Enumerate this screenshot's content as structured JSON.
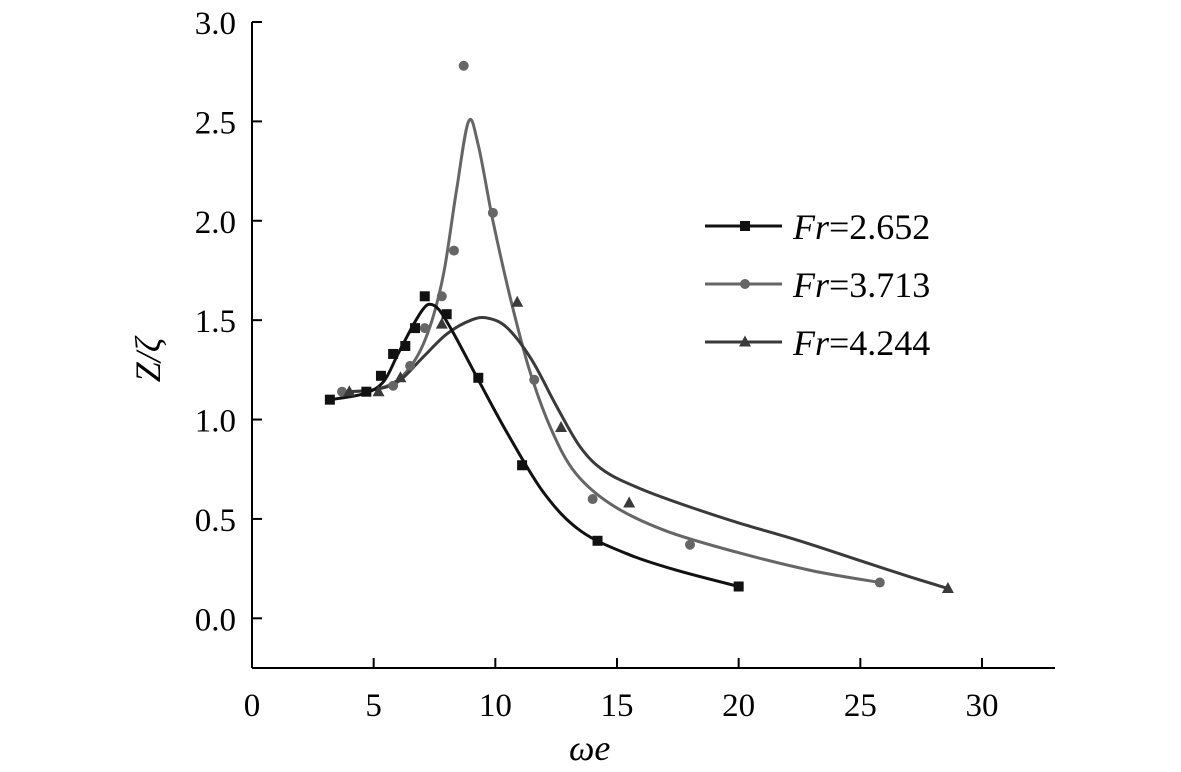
{
  "chart_data": {
    "type": "line",
    "title": "",
    "xlabel": "ωe",
    "ylabel": "Z/ζ",
    "xlim": [
      0,
      33
    ],
    "ylim": [
      -0.25,
      3.0
    ],
    "xticks": [
      "0",
      "5",
      "10",
      "15",
      "20",
      "25",
      "30"
    ],
    "yticks": [
      "0.0",
      "0.5",
      "1.0",
      "1.5",
      "2.0",
      "2.5",
      "3.0"
    ],
    "grid": false,
    "legend_position": "top-right",
    "series": [
      {
        "name": "Fr=2.652",
        "name_italic": "Fr",
        "name_rest": "=2.652",
        "marker": "square",
        "color": "#111111",
        "points": [
          [
            3.2,
            1.1
          ],
          [
            4.7,
            1.14
          ],
          [
            5.3,
            1.22
          ],
          [
            5.8,
            1.33
          ],
          [
            6.3,
            1.37
          ],
          [
            6.7,
            1.46
          ],
          [
            7.1,
            1.62
          ],
          [
            8.0,
            1.53
          ],
          [
            9.3,
            1.21
          ],
          [
            11.1,
            0.77
          ],
          [
            14.2,
            0.39
          ],
          [
            20.0,
            0.16
          ]
        ],
        "curve": [
          [
            3.2,
            1.1
          ],
          [
            4.6,
            1.13
          ],
          [
            5.4,
            1.19
          ],
          [
            6.0,
            1.33
          ],
          [
            6.6,
            1.47
          ],
          [
            7.0,
            1.55
          ],
          [
            7.3,
            1.58
          ],
          [
            7.7,
            1.55
          ],
          [
            8.3,
            1.43
          ],
          [
            9.3,
            1.2
          ],
          [
            10.5,
            0.93
          ],
          [
            12.0,
            0.63
          ],
          [
            13.5,
            0.44
          ],
          [
            15.5,
            0.32
          ],
          [
            17.5,
            0.24
          ],
          [
            20.0,
            0.16
          ]
        ]
      },
      {
        "name": "Fr=3.713",
        "name_italic": "Fr",
        "name_rest": "=3.713",
        "marker": "circle",
        "color": "#666666",
        "points": [
          [
            3.7,
            1.14
          ],
          [
            5.8,
            1.17
          ],
          [
            6.5,
            1.27
          ],
          [
            7.1,
            1.46
          ],
          [
            7.8,
            1.62
          ],
          [
            8.3,
            1.85
          ],
          [
            8.7,
            2.78
          ],
          [
            9.9,
            2.04
          ],
          [
            11.6,
            1.2
          ],
          [
            14.0,
            0.6
          ],
          [
            18.0,
            0.37
          ],
          [
            25.8,
            0.18
          ]
        ],
        "curve": [
          [
            3.7,
            1.14
          ],
          [
            5.0,
            1.15
          ],
          [
            6.0,
            1.2
          ],
          [
            6.8,
            1.32
          ],
          [
            7.4,
            1.5
          ],
          [
            7.9,
            1.75
          ],
          [
            8.4,
            2.15
          ],
          [
            8.9,
            2.5
          ],
          [
            9.3,
            2.38
          ],
          [
            9.9,
            2.0
          ],
          [
            10.6,
            1.62
          ],
          [
            11.4,
            1.25
          ],
          [
            12.3,
            0.95
          ],
          [
            13.3,
            0.73
          ],
          [
            14.8,
            0.57
          ],
          [
            17.0,
            0.44
          ],
          [
            20.0,
            0.33
          ],
          [
            23.0,
            0.24
          ],
          [
            25.8,
            0.18
          ]
        ]
      },
      {
        "name": "Fr=4.244",
        "name_italic": "Fr",
        "name_rest": "=4.244",
        "marker": "triangle",
        "color": "#3a3a3a",
        "points": [
          [
            4.0,
            1.14
          ],
          [
            5.2,
            1.14
          ],
          [
            6.1,
            1.21
          ],
          [
            7.8,
            1.48
          ],
          [
            10.9,
            1.59
          ],
          [
            12.7,
            0.96
          ],
          [
            15.5,
            0.58
          ],
          [
            28.6,
            0.15
          ]
        ],
        "curve": [
          [
            3.9,
            1.14
          ],
          [
            5.0,
            1.15
          ],
          [
            6.0,
            1.19
          ],
          [
            7.0,
            1.31
          ],
          [
            8.0,
            1.43
          ],
          [
            9.0,
            1.5
          ],
          [
            9.7,
            1.51
          ],
          [
            10.5,
            1.46
          ],
          [
            11.5,
            1.3
          ],
          [
            12.5,
            1.07
          ],
          [
            13.5,
            0.86
          ],
          [
            14.5,
            0.74
          ],
          [
            16.0,
            0.65
          ],
          [
            18.0,
            0.56
          ],
          [
            20.0,
            0.48
          ],
          [
            22.5,
            0.39
          ],
          [
            25.0,
            0.29
          ],
          [
            27.0,
            0.21
          ],
          [
            28.6,
            0.15
          ]
        ]
      }
    ]
  }
}
